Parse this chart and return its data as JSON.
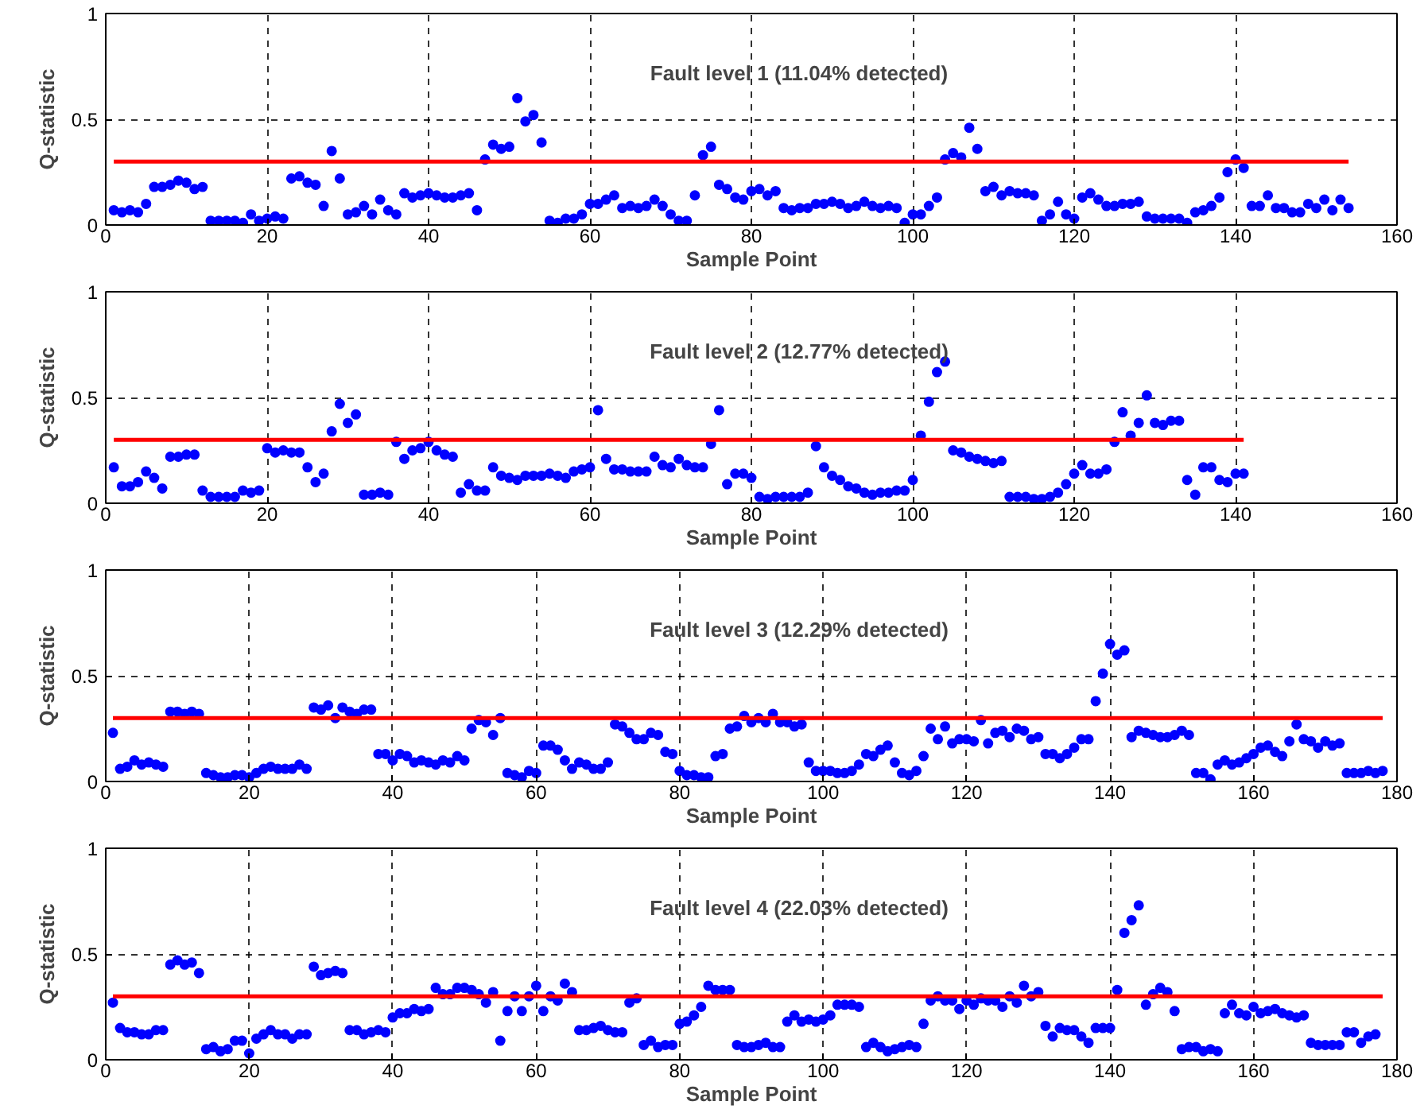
{
  "chart_data": [
    {
      "type": "scatter",
      "title": "Fault level 1 (11.04% detected)",
      "xlabel": "Sample Point",
      "ylabel": "Q-statistic",
      "xlim": [
        0,
        160
      ],
      "xticks": [
        0,
        20,
        40,
        60,
        80,
        100,
        120,
        140,
        160
      ],
      "ylim": [
        0,
        1
      ],
      "yticks": [
        0,
        0.5,
        1
      ],
      "grid": true,
      "series": [
        {
          "marker": "circle",
          "color": "#0000ff",
          "x": [
            1,
            2,
            3,
            4,
            5,
            6,
            7,
            8,
            9,
            10,
            11,
            12,
            13,
            14,
            15,
            16,
            17,
            18,
            19,
            20,
            21,
            22,
            23,
            24,
            25,
            26,
            27,
            28,
            29,
            30,
            31,
            32,
            33,
            34,
            35,
            36,
            37,
            38,
            39,
            40,
            41,
            42,
            43,
            44,
            45,
            46,
            47,
            48,
            49,
            50,
            51,
            52,
            53,
            54,
            55,
            56,
            57,
            58,
            59,
            60,
            61,
            62,
            63,
            64,
            65,
            66,
            67,
            68,
            69,
            70,
            71,
            72,
            73,
            74,
            75,
            76,
            77,
            78,
            79,
            80,
            81,
            82,
            83,
            84,
            85,
            86,
            87,
            88,
            89,
            90,
            91,
            92,
            93,
            94,
            95,
            96,
            97,
            98,
            99,
            100,
            101,
            102,
            103,
            104,
            105,
            106,
            107,
            108,
            109,
            110,
            111,
            112,
            113,
            114,
            115,
            116,
            117,
            118,
            119,
            120,
            121,
            122,
            123,
            124,
            125,
            126,
            127,
            128,
            129,
            130,
            131,
            132,
            133,
            134,
            135,
            136,
            137,
            138,
            139,
            140,
            141,
            142,
            143,
            144,
            145,
            146,
            147,
            148,
            149,
            150,
            151,
            152,
            153,
            154
          ],
          "values": [
            0.07,
            0.06,
            0.07,
            0.06,
            0.1,
            0.18,
            0.18,
            0.19,
            0.21,
            0.2,
            0.17,
            0.18,
            0.02,
            0.02,
            0.02,
            0.02,
            0.01,
            0.05,
            0.02,
            0.03,
            0.04,
            0.03,
            0.22,
            0.23,
            0.2,
            0.19,
            0.09,
            0.35,
            0.22,
            0.05,
            0.06,
            0.09,
            0.05,
            0.12,
            0.07,
            0.05,
            0.15,
            0.13,
            0.14,
            0.15,
            0.14,
            0.13,
            0.13,
            0.14,
            0.15,
            0.07,
            0.31,
            0.38,
            0.36,
            0.37,
            0.6,
            0.49,
            0.52,
            0.39,
            0.02,
            0.01,
            0.03,
            0.03,
            0.05,
            0.1,
            0.1,
            0.12,
            0.14,
            0.08,
            0.09,
            0.08,
            0.09,
            0.12,
            0.09,
            0.05,
            0.02,
            0.02,
            0.14,
            0.33,
            0.37,
            0.19,
            0.17,
            0.13,
            0.12,
            0.16,
            0.17,
            0.14,
            0.16,
            0.08,
            0.07,
            0.08,
            0.08,
            0.1,
            0.1,
            0.11,
            0.1,
            0.08,
            0.09,
            0.11,
            0.09,
            0.08,
            0.09,
            0.08,
            0.01,
            0.05,
            0.05,
            0.09,
            0.13,
            0.31,
            0.34,
            0.32,
            0.46,
            0.36,
            0.16,
            0.18,
            0.14,
            0.16,
            0.15,
            0.15,
            0.14,
            0.02,
            0.05,
            0.11,
            0.05,
            0.03,
            0.13,
            0.15,
            0.12,
            0.09,
            0.09,
            0.1,
            0.1,
            0.11,
            0.04,
            0.03,
            0.03,
            0.03,
            0.03,
            0.01,
            0.06,
            0.07,
            0.09,
            0.13,
            0.25,
            0.31,
            0.27,
            0.09,
            0.09,
            0.14,
            0.08,
            0.08,
            0.06,
            0.06,
            0.1,
            0.08,
            0.12,
            0.07,
            0.12,
            0.08
          ]
        },
        {
          "type": "line",
          "color": "#ff0000",
          "x": [
            1,
            154
          ],
          "values": [
            0.3,
            0.3
          ]
        }
      ]
    },
    {
      "type": "scatter",
      "title": "Fault level 2 (12.77% detected)",
      "xlabel": "Sample Point",
      "ylabel": "Q-statistic",
      "xlim": [
        0,
        160
      ],
      "xticks": [
        0,
        20,
        40,
        60,
        80,
        100,
        120,
        140,
        160
      ],
      "ylim": [
        0,
        1
      ],
      "yticks": [
        0,
        0.5,
        1
      ],
      "grid": true,
      "series": [
        {
          "marker": "circle",
          "color": "#0000ff",
          "x": [
            1,
            2,
            3,
            4,
            5,
            6,
            7,
            8,
            9,
            10,
            11,
            12,
            13,
            14,
            15,
            16,
            17,
            18,
            19,
            20,
            21,
            22,
            23,
            24,
            25,
            26,
            27,
            28,
            29,
            30,
            31,
            32,
            33,
            34,
            35,
            36,
            37,
            38,
            39,
            40,
            41,
            42,
            43,
            44,
            45,
            46,
            47,
            48,
            49,
            50,
            51,
            52,
            53,
            54,
            55,
            56,
            57,
            58,
            59,
            60,
            61,
            62,
            63,
            64,
            65,
            66,
            67,
            68,
            69,
            70,
            71,
            72,
            73,
            74,
            75,
            76,
            77,
            78,
            79,
            80,
            81,
            82,
            83,
            84,
            85,
            86,
            87,
            88,
            89,
            90,
            91,
            92,
            93,
            94,
            95,
            96,
            97,
            98,
            99,
            100,
            101,
            102,
            103,
            104,
            105,
            106,
            107,
            108,
            109,
            110,
            111,
            112,
            113,
            114,
            115,
            116,
            117,
            118,
            119,
            120,
            121,
            122,
            123,
            124,
            125,
            126,
            127,
            128,
            129,
            130,
            131,
            132,
            133,
            134,
            135,
            136,
            137,
            138,
            139,
            140,
            141
          ],
          "values": [
            0.17,
            0.08,
            0.08,
            0.1,
            0.15,
            0.12,
            0.07,
            0.22,
            0.22,
            0.23,
            0.23,
            0.06,
            0.03,
            0.03,
            0.03,
            0.03,
            0.06,
            0.05,
            0.06,
            0.26,
            0.24,
            0.25,
            0.24,
            0.24,
            0.17,
            0.1,
            0.14,
            0.34,
            0.47,
            0.38,
            0.42,
            0.04,
            0.04,
            0.05,
            0.04,
            0.29,
            0.21,
            0.25,
            0.26,
            0.29,
            0.25,
            0.23,
            0.22,
            0.05,
            0.09,
            0.06,
            0.06,
            0.17,
            0.13,
            0.12,
            0.11,
            0.13,
            0.13,
            0.13,
            0.14,
            0.13,
            0.12,
            0.15,
            0.16,
            0.17,
            0.44,
            0.21,
            0.16,
            0.16,
            0.15,
            0.15,
            0.15,
            0.22,
            0.18,
            0.17,
            0.21,
            0.18,
            0.17,
            0.17,
            0.28,
            0.44,
            0.09,
            0.14,
            0.14,
            0.12,
            0.03,
            0.02,
            0.03,
            0.03,
            0.03,
            0.03,
            0.05,
            0.27,
            0.17,
            0.13,
            0.11,
            0.08,
            0.07,
            0.05,
            0.04,
            0.05,
            0.05,
            0.06,
            0.06,
            0.11,
            0.32,
            0.48,
            0.62,
            0.67,
            0.25,
            0.24,
            0.22,
            0.21,
            0.2,
            0.19,
            0.2,
            0.03,
            0.03,
            0.03,
            0.02,
            0.02,
            0.03,
            0.05,
            0.09,
            0.14,
            0.18,
            0.14,
            0.14,
            0.16,
            0.29,
            0.43,
            0.32,
            0.38,
            0.51,
            0.38,
            0.37,
            0.39,
            0.39,
            0.11,
            0.04,
            0.17,
            0.17,
            0.11,
            0.1,
            0.14,
            0.14
          ]
        },
        {
          "type": "line",
          "color": "#ff0000",
          "x": [
            1,
            141
          ],
          "values": [
            0.3,
            0.3
          ]
        }
      ]
    },
    {
      "type": "scatter",
      "title": "Fault level 3 (12.29% detected)",
      "xlabel": "Sample Point",
      "ylabel": "Q-statistic",
      "xlim": [
        0,
        180
      ],
      "xticks": [
        0,
        20,
        40,
        60,
        80,
        100,
        120,
        140,
        160,
        180
      ],
      "ylim": [
        0,
        1
      ],
      "yticks": [
        0,
        0.5,
        1
      ],
      "grid": true,
      "series": [
        {
          "marker": "circle",
          "color": "#0000ff",
          "x": [
            1,
            2,
            3,
            4,
            5,
            6,
            7,
            8,
            9,
            10,
            11,
            12,
            13,
            14,
            15,
            16,
            17,
            18,
            19,
            20,
            21,
            22,
            23,
            24,
            25,
            26,
            27,
            28,
            29,
            30,
            31,
            32,
            33,
            34,
            35,
            36,
            37,
            38,
            39,
            40,
            41,
            42,
            43,
            44,
            45,
            46,
            47,
            48,
            49,
            50,
            51,
            52,
            53,
            54,
            55,
            56,
            57,
            58,
            59,
            60,
            61,
            62,
            63,
            64,
            65,
            66,
            67,
            68,
            69,
            70,
            71,
            72,
            73,
            74,
            75,
            76,
            77,
            78,
            79,
            80,
            81,
            82,
            83,
            84,
            85,
            86,
            87,
            88,
            89,
            90,
            91,
            92,
            93,
            94,
            95,
            96,
            97,
            98,
            99,
            100,
            101,
            102,
            103,
            104,
            105,
            106,
            107,
            108,
            109,
            110,
            111,
            112,
            113,
            114,
            115,
            116,
            117,
            118,
            119,
            120,
            121,
            122,
            123,
            124,
            125,
            126,
            127,
            128,
            129,
            130,
            131,
            132,
            133,
            134,
            135,
            136,
            137,
            138,
            139,
            140,
            141,
            142,
            143,
            144,
            145,
            146,
            147,
            148,
            149,
            150,
            151,
            152,
            153,
            154,
            155,
            156,
            157,
            158,
            159,
            160,
            161,
            162,
            163,
            164,
            165,
            166,
            167,
            168,
            169,
            170,
            171,
            172,
            173,
            174,
            175,
            176,
            177,
            178
          ],
          "values": [
            0.23,
            0.06,
            0.07,
            0.1,
            0.08,
            0.09,
            0.08,
            0.07,
            0.33,
            0.33,
            0.32,
            0.33,
            0.32,
            0.04,
            0.03,
            0.02,
            0.02,
            0.03,
            0.03,
            0.02,
            0.04,
            0.06,
            0.07,
            0.06,
            0.06,
            0.06,
            0.08,
            0.06,
            0.35,
            0.34,
            0.36,
            0.3,
            0.35,
            0.33,
            0.32,
            0.34,
            0.34,
            0.13,
            0.13,
            0.1,
            0.13,
            0.12,
            0.09,
            0.1,
            0.09,
            0.08,
            0.1,
            0.09,
            0.12,
            0.1,
            0.25,
            0.29,
            0.28,
            0.22,
            0.3,
            0.04,
            0.03,
            0.02,
            0.05,
            0.04,
            0.17,
            0.17,
            0.15,
            0.1,
            0.06,
            0.09,
            0.08,
            0.06,
            0.06,
            0.09,
            0.27,
            0.26,
            0.23,
            0.2,
            0.2,
            0.23,
            0.22,
            0.14,
            0.13,
            0.05,
            0.03,
            0.03,
            0.02,
            0.02,
            0.12,
            0.13,
            0.25,
            0.26,
            0.31,
            0.28,
            0.3,
            0.28,
            0.32,
            0.28,
            0.28,
            0.26,
            0.27,
            0.09,
            0.05,
            0.05,
            0.05,
            0.04,
            0.04,
            0.05,
            0.08,
            0.13,
            0.12,
            0.15,
            0.17,
            0.09,
            0.04,
            0.03,
            0.05,
            0.12,
            0.25,
            0.2,
            0.26,
            0.18,
            0.2,
            0.2,
            0.19,
            0.29,
            0.18,
            0.23,
            0.24,
            0.21,
            0.25,
            0.24,
            0.2,
            0.21,
            0.13,
            0.13,
            0.11,
            0.13,
            0.16,
            0.2,
            0.2,
            0.38,
            0.51,
            0.65,
            0.6,
            0.62,
            0.21,
            0.24,
            0.23,
            0.22,
            0.21,
            0.21,
            0.22,
            0.24,
            0.22,
            0.04,
            0.04,
            0.01,
            0.08,
            0.1,
            0.08,
            0.09,
            0.11,
            0.13,
            0.16,
            0.17,
            0.14,
            0.12,
            0.19,
            0.27,
            0.2,
            0.19,
            0.16,
            0.19,
            0.17,
            0.18,
            0.04,
            0.04,
            0.04,
            0.05,
            0.04,
            0.05
          ]
        },
        {
          "type": "line",
          "color": "#ff0000",
          "x": [
            1,
            178
          ],
          "values": [
            0.3,
            0.3
          ]
        }
      ]
    },
    {
      "type": "scatter",
      "title": "Fault level 4 (22.03% detected)",
      "xlabel": "Sample Point",
      "ylabel": "Q-statistic",
      "xlim": [
        0,
        180
      ],
      "xticks": [
        0,
        20,
        40,
        60,
        80,
        100,
        120,
        140,
        160,
        180
      ],
      "ylim": [
        0,
        1
      ],
      "yticks": [
        0,
        0.5,
        1
      ],
      "grid": true,
      "series": [
        {
          "marker": "circle",
          "color": "#0000ff",
          "x": [
            1,
            2,
            3,
            4,
            5,
            6,
            7,
            8,
            9,
            10,
            11,
            12,
            13,
            14,
            15,
            16,
            17,
            18,
            19,
            20,
            21,
            22,
            23,
            24,
            25,
            26,
            27,
            28,
            29,
            30,
            31,
            32,
            33,
            34,
            35,
            36,
            37,
            38,
            39,
            40,
            41,
            42,
            43,
            44,
            45,
            46,
            47,
            48,
            49,
            50,
            51,
            52,
            53,
            54,
            55,
            56,
            57,
            58,
            59,
            60,
            61,
            62,
            63,
            64,
            65,
            66,
            67,
            68,
            69,
            70,
            71,
            72,
            73,
            74,
            75,
            76,
            77,
            78,
            79,
            80,
            81,
            82,
            83,
            84,
            85,
            86,
            87,
            88,
            89,
            90,
            91,
            92,
            93,
            94,
            95,
            96,
            97,
            98,
            99,
            100,
            101,
            102,
            103,
            104,
            105,
            106,
            107,
            108,
            109,
            110,
            111,
            112,
            113,
            114,
            115,
            116,
            117,
            118,
            119,
            120,
            121,
            122,
            123,
            124,
            125,
            126,
            127,
            128,
            129,
            130,
            131,
            132,
            133,
            134,
            135,
            136,
            137,
            138,
            139,
            140,
            141,
            142,
            143,
            144,
            145,
            146,
            147,
            148,
            149,
            150,
            151,
            152,
            153,
            154,
            155,
            156,
            157,
            158,
            159,
            160,
            161,
            162,
            163,
            164,
            165,
            166,
            167,
            168,
            169,
            170,
            171,
            172,
            173,
            174,
            175,
            176,
            177
          ],
          "values": [
            0.27,
            0.15,
            0.13,
            0.13,
            0.12,
            0.12,
            0.14,
            0.14,
            0.45,
            0.47,
            0.45,
            0.46,
            0.41,
            0.05,
            0.06,
            0.04,
            0.05,
            0.09,
            0.09,
            0.03,
            0.1,
            0.12,
            0.14,
            0.12,
            0.12,
            0.1,
            0.12,
            0.12,
            0.44,
            0.4,
            0.41,
            0.42,
            0.41,
            0.14,
            0.14,
            0.12,
            0.13,
            0.14,
            0.13,
            0.2,
            0.22,
            0.22,
            0.24,
            0.23,
            0.24,
            0.34,
            0.31,
            0.31,
            0.34,
            0.34,
            0.33,
            0.31,
            0.27,
            0.32,
            0.09,
            0.23,
            0.3,
            0.23,
            0.3,
            0.35,
            0.23,
            0.3,
            0.28,
            0.36,
            0.32,
            0.14,
            0.14,
            0.15,
            0.16,
            0.14,
            0.13,
            0.13,
            0.27,
            0.29,
            0.07,
            0.09,
            0.06,
            0.07,
            0.07,
            0.17,
            0.18,
            0.21,
            0.25,
            0.35,
            0.33,
            0.33,
            0.33,
            0.07,
            0.06,
            0.06,
            0.07,
            0.08,
            0.06,
            0.06,
            0.18,
            0.21,
            0.18,
            0.19,
            0.18,
            0.19,
            0.21,
            0.26,
            0.26,
            0.26,
            0.25,
            0.06,
            0.08,
            0.06,
            0.04,
            0.05,
            0.06,
            0.07,
            0.06,
            0.17,
            0.28,
            0.3,
            0.28,
            0.28,
            0.24,
            0.28,
            0.26,
            0.29,
            0.28,
            0.28,
            0.25,
            0.3,
            0.27,
            0.35,
            0.3,
            0.32,
            0.16,
            0.11,
            0.15,
            0.14,
            0.14,
            0.11,
            0.08,
            0.15,
            0.15,
            0.15,
            0.33,
            0.6,
            0.66,
            0.73,
            0.26,
            0.31,
            0.34,
            0.32,
            0.23,
            0.05,
            0.06,
            0.06,
            0.04,
            0.05,
            0.04,
            0.22,
            0.26,
            0.22,
            0.21,
            0.25,
            0.22,
            0.23,
            0.24,
            0.22,
            0.21,
            0.2,
            0.21,
            0.08,
            0.07,
            0.07,
            0.07,
            0.07,
            0.13,
            0.13,
            0.08,
            0.11,
            0.12
          ]
        },
        {
          "type": "line",
          "color": "#ff0000",
          "x": [
            1,
            178
          ],
          "values": [
            0.3,
            0.3
          ]
        }
      ]
    }
  ]
}
